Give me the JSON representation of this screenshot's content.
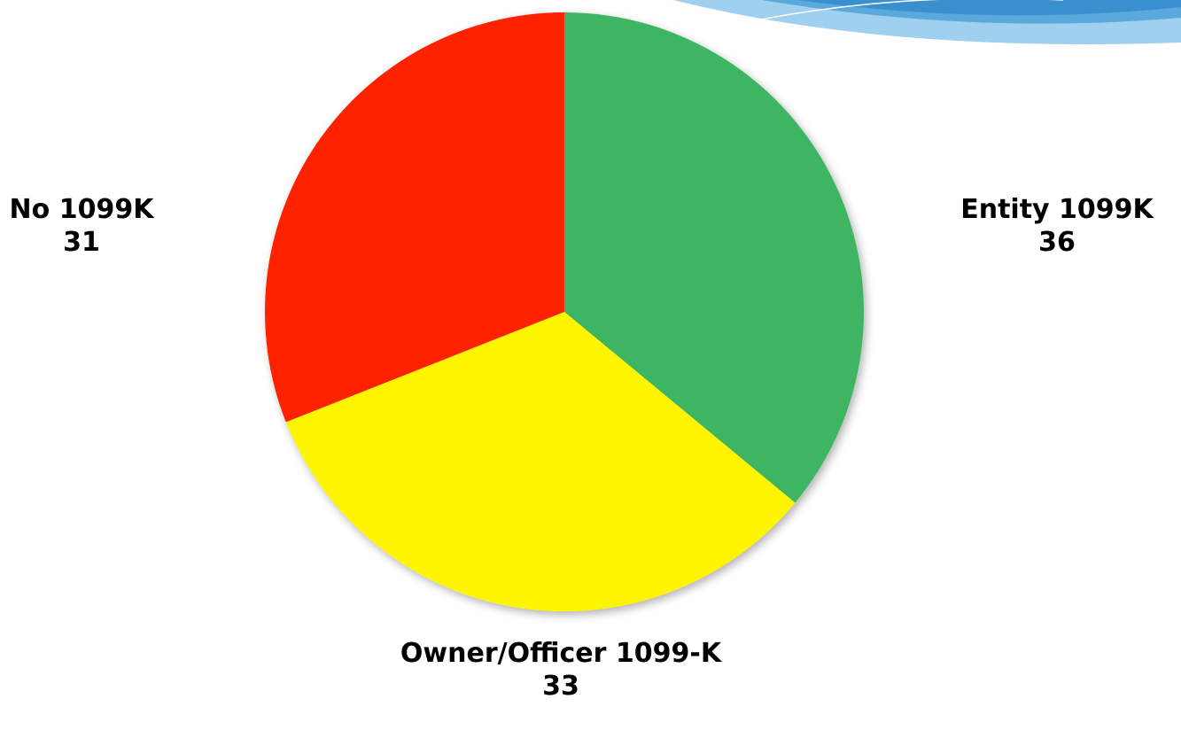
{
  "chart_data": {
    "type": "pie",
    "categories": [
      "Entity 1099K",
      "Owner/Officer 1099-K",
      "No 1099K"
    ],
    "values": [
      36,
      33,
      31
    ],
    "colors": [
      "#3cb563",
      "#fff500",
      "#ff2200"
    ]
  }
}
